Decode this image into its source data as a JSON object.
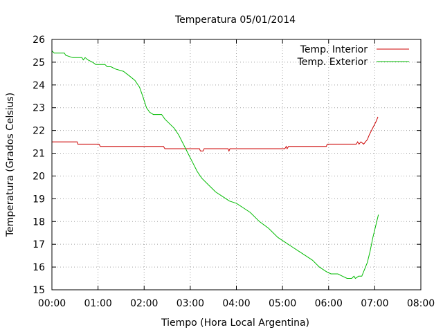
{
  "chart_data": {
    "type": "line",
    "title": "Temperatura 05/01/2014",
    "xlabel": "Tiempo (Hora Local Argentina)",
    "ylabel": "Temperatura (Grados Celsius)",
    "xlim": [
      0,
      8
    ],
    "ylim": [
      15,
      26
    ],
    "x_ticks": [
      "00:00",
      "01:00",
      "02:00",
      "03:00",
      "04:00",
      "05:00",
      "06:00",
      "07:00",
      "08:00"
    ],
    "y_ticks": [
      "15",
      "16",
      "17",
      "18",
      "19",
      "20",
      "21",
      "22",
      "23",
      "24",
      "25",
      "26"
    ],
    "grid": true,
    "legend_position": "top-right",
    "series": [
      {
        "name": "Temp. Interior",
        "color": "#cc0000",
        "points": [
          [
            0.0,
            21.5
          ],
          [
            0.55,
            21.5
          ],
          [
            0.56,
            21.4
          ],
          [
            1.02,
            21.4
          ],
          [
            1.05,
            21.3
          ],
          [
            2.42,
            21.3
          ],
          [
            2.45,
            21.2
          ],
          [
            3.2,
            21.2
          ],
          [
            3.22,
            21.1
          ],
          [
            3.28,
            21.1
          ],
          [
            3.3,
            21.2
          ],
          [
            3.82,
            21.2
          ],
          [
            3.84,
            21.1
          ],
          [
            3.86,
            21.2
          ],
          [
            5.05,
            21.2
          ],
          [
            5.08,
            21.3
          ],
          [
            5.1,
            21.2
          ],
          [
            5.13,
            21.3
          ],
          [
            5.95,
            21.3
          ],
          [
            5.97,
            21.4
          ],
          [
            6.6,
            21.4
          ],
          [
            6.63,
            21.5
          ],
          [
            6.66,
            21.4
          ],
          [
            6.7,
            21.5
          ],
          [
            6.76,
            21.4
          ],
          [
            6.8,
            21.5
          ],
          [
            6.84,
            21.6
          ],
          [
            6.88,
            21.8
          ],
          [
            6.93,
            22.0
          ],
          [
            6.98,
            22.2
          ],
          [
            7.03,
            22.4
          ],
          [
            7.07,
            22.6
          ]
        ]
      },
      {
        "name": "Temp. Exterior",
        "color": "#00bb00",
        "points": [
          [
            0.0,
            25.5
          ],
          [
            0.05,
            25.4
          ],
          [
            0.27,
            25.4
          ],
          [
            0.3,
            25.3
          ],
          [
            0.45,
            25.2
          ],
          [
            0.65,
            25.2
          ],
          [
            0.68,
            25.1
          ],
          [
            0.72,
            25.2
          ],
          [
            0.78,
            25.1
          ],
          [
            0.88,
            25.0
          ],
          [
            0.95,
            24.9
          ],
          [
            1.15,
            24.9
          ],
          [
            1.2,
            24.8
          ],
          [
            1.28,
            24.8
          ],
          [
            1.38,
            24.7
          ],
          [
            1.55,
            24.6
          ],
          [
            1.68,
            24.4
          ],
          [
            1.8,
            24.2
          ],
          [
            1.9,
            23.9
          ],
          [
            1.97,
            23.5
          ],
          [
            2.05,
            23.0
          ],
          [
            2.12,
            22.8
          ],
          [
            2.2,
            22.7
          ],
          [
            2.38,
            22.7
          ],
          [
            2.45,
            22.5
          ],
          [
            2.55,
            22.3
          ],
          [
            2.65,
            22.1
          ],
          [
            2.75,
            21.8
          ],
          [
            2.85,
            21.4
          ],
          [
            2.95,
            21.0
          ],
          [
            3.05,
            20.6
          ],
          [
            3.15,
            20.2
          ],
          [
            3.25,
            19.9
          ],
          [
            3.4,
            19.6
          ],
          [
            3.55,
            19.3
          ],
          [
            3.7,
            19.1
          ],
          [
            3.85,
            18.9
          ],
          [
            4.0,
            18.8
          ],
          [
            4.15,
            18.6
          ],
          [
            4.3,
            18.4
          ],
          [
            4.5,
            18.0
          ],
          [
            4.7,
            17.7
          ],
          [
            4.9,
            17.3
          ],
          [
            5.05,
            17.1
          ],
          [
            5.2,
            16.9
          ],
          [
            5.35,
            16.7
          ],
          [
            5.5,
            16.5
          ],
          [
            5.65,
            16.3
          ],
          [
            5.8,
            16.0
          ],
          [
            5.95,
            15.8
          ],
          [
            6.05,
            15.7
          ],
          [
            6.2,
            15.7
          ],
          [
            6.3,
            15.6
          ],
          [
            6.4,
            15.5
          ],
          [
            6.5,
            15.5
          ],
          [
            6.55,
            15.6
          ],
          [
            6.58,
            15.5
          ],
          [
            6.65,
            15.6
          ],
          [
            6.72,
            15.6
          ],
          [
            6.78,
            15.9
          ],
          [
            6.84,
            16.2
          ],
          [
            6.9,
            16.7
          ],
          [
            6.96,
            17.3
          ],
          [
            7.02,
            17.8
          ],
          [
            7.08,
            18.3
          ]
        ]
      }
    ]
  }
}
